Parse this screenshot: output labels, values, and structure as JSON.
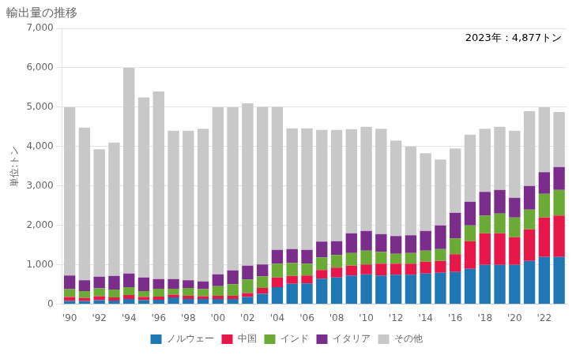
{
  "chart_data": {
    "type": "bar",
    "title": "輸出量の推移",
    "y_label": "単位:トン",
    "annotations": [
      "2023年：4,877トン"
    ],
    "stacked": true,
    "grid": true,
    "legend": "bottom",
    "categories": [
      "'90",
      null,
      "'92",
      null,
      "'94",
      null,
      "'96",
      null,
      "'98",
      null,
      "'00",
      null,
      "'02",
      null,
      "'04",
      null,
      "'06",
      null,
      "'08",
      null,
      "'10",
      null,
      "'12",
      null,
      "'14",
      null,
      "'16",
      null,
      "'18",
      null,
      "'20",
      null,
      "'22",
      null
    ],
    "series": [
      {
        "name": "ノルウェー",
        "color": "#1f77b4",
        "values": [
          80,
          80,
          100,
          90,
          130,
          100,
          110,
          170,
          130,
          130,
          130,
          130,
          180,
          260,
          430,
          520,
          530,
          650,
          680,
          730,
          760,
          730,
          750,
          750,
          780,
          800,
          820,
          900,
          1000,
          1000,
          1000,
          1100,
          1200,
          1200
        ]
      },
      {
        "name": "中国",
        "color": "#e8174a",
        "values": [
          100,
          80,
          100,
          80,
          100,
          80,
          80,
          70,
          80,
          70,
          80,
          80,
          100,
          150,
          250,
          200,
          200,
          220,
          250,
          250,
          250,
          300,
          280,
          280,
          300,
          300,
          450,
          700,
          800,
          800,
          700,
          800,
          1000,
          1050
        ]
      },
      {
        "name": "インド",
        "color": "#6aaa35",
        "values": [
          200,
          170,
          200,
          200,
          200,
          150,
          200,
          150,
          200,
          180,
          250,
          300,
          350,
          300,
          350,
          330,
          300,
          320,
          320,
          320,
          350,
          300,
          250,
          270,
          280,
          300,
          400,
          400,
          450,
          500,
          500,
          500,
          600,
          650
        ]
      },
      {
        "name": "イタリア",
        "color": "#7b2d8b",
        "values": [
          350,
          280,
          300,
          350,
          350,
          350,
          250,
          250,
          200,
          200,
          300,
          350,
          350,
          300,
          350,
          350,
          350,
          400,
          350,
          500,
          500,
          450,
          450,
          450,
          500,
          600,
          650,
          600,
          600,
          600,
          500,
          600,
          550,
          580
        ]
      },
      {
        "name": "その他",
        "color": "#c8c8c8",
        "values": [
          4270,
          3870,
          3230,
          3380,
          5220,
          4570,
          4760,
          3760,
          3790,
          3870,
          4240,
          4140,
          4120,
          4000,
          3630,
          3060,
          3080,
          2830,
          2820,
          2640,
          2640,
          2670,
          2420,
          2250,
          1970,
          1670,
          1630,
          1700,
          1600,
          1600,
          1700,
          1900,
          1650,
          1397
        ]
      }
    ],
    "ylim": [
      0,
      7000
    ],
    "yticks": [
      0,
      {
        "value": 1000,
        "label": "1,000"
      },
      {
        "value": 2000,
        "label": "2,000"
      },
      {
        "value": 3000,
        "label": "3,000"
      },
      {
        "value": 4000,
        "label": "4,000"
      },
      {
        "value": 5000,
        "label": "5,000"
      },
      {
        "value": 6000,
        "label": "6,000"
      },
      {
        "value": 7000,
        "label": "7,000"
      }
    ]
  }
}
